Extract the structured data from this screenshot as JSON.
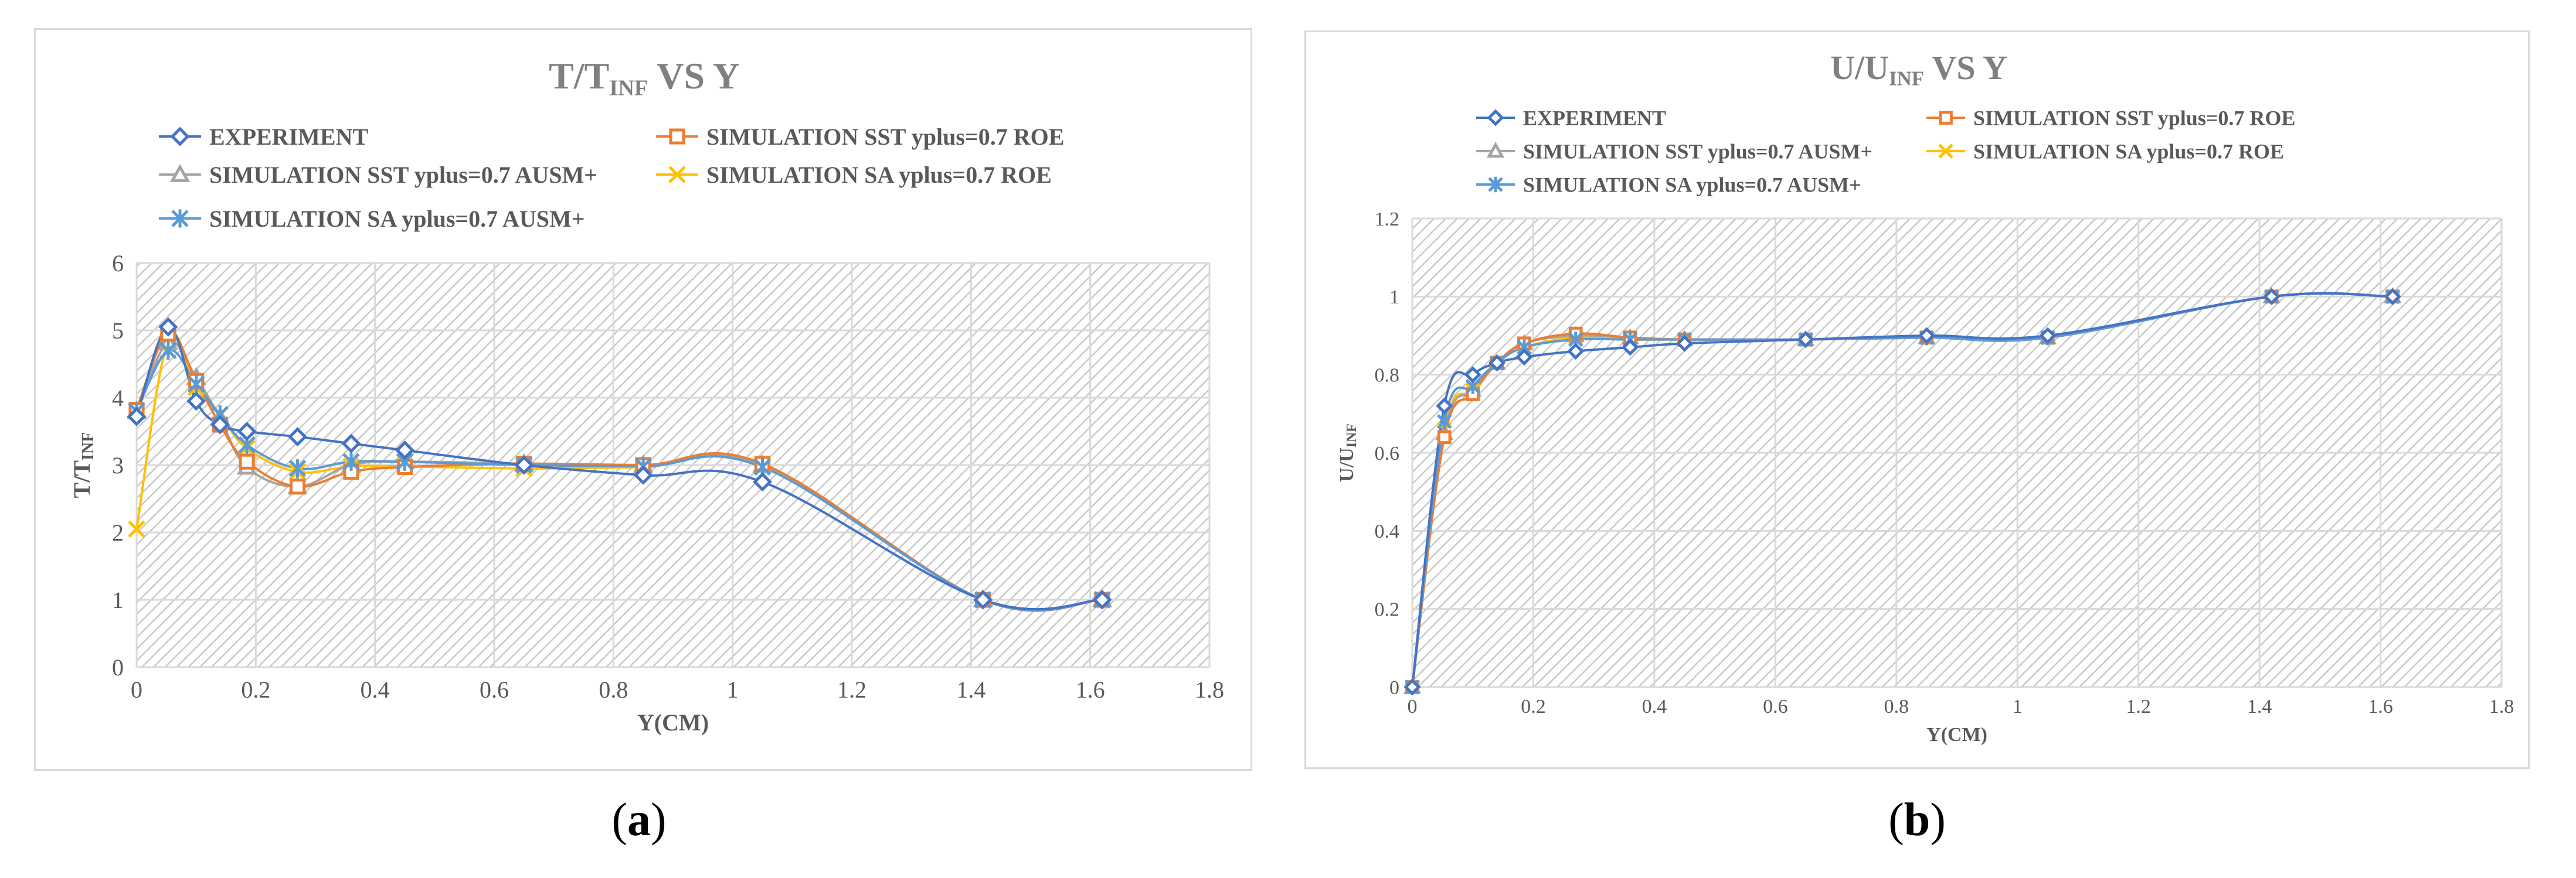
{
  "colors": {
    "experiment": "#4472c4",
    "sst_roe": "#ed7d31",
    "sst_ausm": "#a5a5a5",
    "sa_roe": "#ffc000",
    "sa_ausm": "#5b9bd5",
    "title": "#808080",
    "grid": "#d9d9d9",
    "axis_text": "#595959"
  },
  "subfigure_labels": [
    {
      "open": "(",
      "letter": "a",
      "close": ")"
    },
    {
      "open": "(",
      "letter": "b",
      "close": ")"
    }
  ],
  "chart_data": [
    {
      "type": "line",
      "title": {
        "main": "T/T",
        "sub": "INF",
        "rest": " VS Y"
      },
      "xlabel": "Y(CM)",
      "ylabel": {
        "main": "T/T",
        "sub": "INF"
      },
      "xlim": [
        0,
        1.8
      ],
      "ylim": [
        0,
        6
      ],
      "xticks": [
        "0",
        "0.2",
        "0.4",
        "0.6",
        "0.8",
        "1",
        "1.2",
        "1.4",
        "1.6",
        "1.8"
      ],
      "xtick_values": [
        0,
        0.2,
        0.4,
        0.6,
        0.8,
        1.0,
        1.2,
        1.4,
        1.6,
        1.8
      ],
      "yticks": [
        "0",
        "1",
        "2",
        "3",
        "4",
        "5",
        "6"
      ],
      "ytick_values": [
        0,
        1,
        2,
        3,
        4,
        5,
        6
      ],
      "grid": true,
      "legend_position": "top",
      "series": [
        {
          "name": "EXPERIMENT",
          "marker": "diamond",
          "x": [
            0,
            0.053,
            0.1,
            0.14,
            0.185,
            0.27,
            0.36,
            0.45,
            0.65,
            0.85,
            1.05,
            1.42,
            1.62
          ],
          "y": [
            3.72,
            5.05,
            3.95,
            3.6,
            3.5,
            3.42,
            3.32,
            3.22,
            3.0,
            2.85,
            2.75,
            1.0,
            1.0
          ]
        },
        {
          "name": "SIMULATION SST yplus=0.7 ROE",
          "marker": "square",
          "x": [
            0,
            0.053,
            0.1,
            0.14,
            0.185,
            0.27,
            0.36,
            0.45,
            0.65,
            0.85,
            1.05,
            1.42,
            1.62
          ],
          "y": [
            3.82,
            4.95,
            4.25,
            3.6,
            3.05,
            2.68,
            2.9,
            2.97,
            3.02,
            3.0,
            3.02,
            1.0,
            1.0
          ]
        },
        {
          "name": "SIMULATION SST yplus=0.7 AUSM+",
          "marker": "triangle",
          "x": [
            0,
            0.053,
            0.1,
            0.14,
            0.185,
            0.27,
            0.36,
            0.45,
            0.65,
            0.85,
            1.05,
            1.42,
            1.62
          ],
          "y": [
            3.8,
            4.82,
            4.3,
            3.7,
            2.97,
            2.68,
            3.0,
            3.05,
            3.02,
            3.0,
            3.0,
            1.0,
            1.0
          ]
        },
        {
          "name": "SIMULATION SA yplus=0.7 ROE",
          "marker": "x",
          "x": [
            0,
            0.053,
            0.1,
            0.14,
            0.185,
            0.27,
            0.36,
            0.45,
            0.65,
            0.85,
            1.05,
            1.42,
            1.62
          ],
          "y": [
            2.05,
            4.85,
            4.15,
            3.75,
            3.25,
            2.9,
            2.98,
            2.98,
            2.95,
            2.97,
            3.0,
            1.0,
            1.0
          ]
        },
        {
          "name": "SIMULATION SA yplus=0.7 AUSM+",
          "marker": "asterisk",
          "x": [
            0,
            0.053,
            0.1,
            0.14,
            0.185,
            0.27,
            0.36,
            0.45,
            0.65,
            0.85,
            1.05,
            1.42,
            1.62
          ],
          "y": [
            3.8,
            4.7,
            4.2,
            3.75,
            3.3,
            2.95,
            3.05,
            3.05,
            3.0,
            2.98,
            2.97,
            1.0,
            1.0
          ]
        }
      ]
    },
    {
      "type": "line",
      "title": {
        "main": "U/U",
        "sub": "INF",
        "rest": " VS Y"
      },
      "xlabel": "Y(CM)",
      "ylabel": {
        "main": "U/U",
        "sub": "INF"
      },
      "xlim": [
        0,
        1.8
      ],
      "ylim": [
        0,
        1.2
      ],
      "xticks": [
        "0",
        "0.2",
        "0.4",
        "0.6",
        "0.8",
        "1",
        "1.2",
        "1.4",
        "1.6",
        "1.8"
      ],
      "xtick_values": [
        0,
        0.2,
        0.4,
        0.6,
        0.8,
        1.0,
        1.2,
        1.4,
        1.6,
        1.8
      ],
      "yticks": [
        "0",
        "0.2",
        "0.4",
        "0.6",
        "0.8",
        "1",
        "1.2"
      ],
      "ytick_values": [
        0,
        0.2,
        0.4,
        0.6,
        0.8,
        1.0,
        1.2
      ],
      "grid": true,
      "legend_position": "top",
      "series": [
        {
          "name": "EXPERIMENT",
          "marker": "diamond",
          "x": [
            0,
            0.053,
            0.1,
            0.14,
            0.185,
            0.27,
            0.36,
            0.45,
            0.65,
            0.85,
            1.05,
            1.42,
            1.62
          ],
          "y": [
            0,
            0.72,
            0.8,
            0.83,
            0.845,
            0.86,
            0.87,
            0.88,
            0.89,
            0.9,
            0.9,
            1.0,
            1.0
          ]
        },
        {
          "name": "SIMULATION SST yplus=0.7 ROE",
          "marker": "square",
          "x": [
            0,
            0.053,
            0.1,
            0.14,
            0.185,
            0.27,
            0.36,
            0.45,
            0.65,
            0.85,
            1.05,
            1.42,
            1.62
          ],
          "y": [
            0,
            0.64,
            0.75,
            0.83,
            0.88,
            0.905,
            0.895,
            0.89,
            0.89,
            0.895,
            0.895,
            1.0,
            1.0
          ]
        },
        {
          "name": "SIMULATION SST yplus=0.7 AUSM+",
          "marker": "triangle",
          "x": [
            0,
            0.053,
            0.1,
            0.14,
            0.185,
            0.27,
            0.36,
            0.45,
            0.65,
            0.85,
            1.05,
            1.42,
            1.62
          ],
          "y": [
            0,
            0.65,
            0.76,
            0.83,
            0.88,
            0.9,
            0.895,
            0.89,
            0.89,
            0.895,
            0.895,
            1.0,
            1.0
          ]
        },
        {
          "name": "SIMULATION SA yplus=0.7 ROE",
          "marker": "x",
          "x": [
            0,
            0.053,
            0.1,
            0.14,
            0.185,
            0.27,
            0.36,
            0.45,
            0.65,
            0.85,
            1.05,
            1.42,
            1.62
          ],
          "y": [
            0,
            0.66,
            0.76,
            0.83,
            0.87,
            0.895,
            0.89,
            0.89,
            0.89,
            0.895,
            0.895,
            1.0,
            1.0
          ]
        },
        {
          "name": "SIMULATION SA yplus=0.7 AUSM+",
          "marker": "asterisk",
          "x": [
            0,
            0.053,
            0.1,
            0.14,
            0.185,
            0.27,
            0.36,
            0.45,
            0.65,
            0.85,
            1.05,
            1.42,
            1.62
          ],
          "y": [
            0,
            0.68,
            0.77,
            0.83,
            0.87,
            0.89,
            0.89,
            0.89,
            0.89,
            0.895,
            0.895,
            1.0,
            1.0
          ]
        }
      ]
    }
  ]
}
